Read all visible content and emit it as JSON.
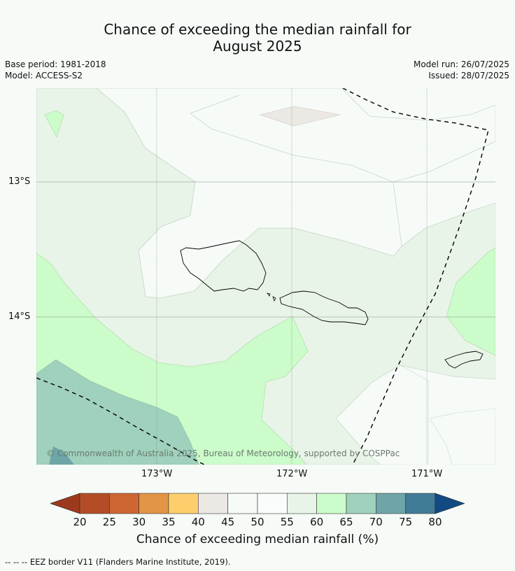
{
  "title": {
    "line1": "Chance of exceeding the median rainfall for",
    "line2": "August 2025"
  },
  "meta": {
    "base_period": "Base period: 1981-2018",
    "model": "Model: ACCESS-S2",
    "model_run": "Model run: 26/07/2025",
    "issued": "Issued: 28/07/2025"
  },
  "map": {
    "lat_labels": [
      "13°S",
      "14°S"
    ],
    "lon_labels": [
      "173°W",
      "172°W",
      "171°W"
    ],
    "copyright": "© Commonwealth of Australia 2025, Bureau of Meteorology, supported by COSPPac",
    "land_outline_color": "#000000",
    "eez_line_color": "#000000"
  },
  "colorbar": {
    "title": "Chance of exceeding median rainfall (%)",
    "ticks": [
      "20",
      "25",
      "30",
      "35",
      "40",
      "45",
      "50",
      "55",
      "60",
      "65",
      "70",
      "75",
      "80"
    ],
    "colors": [
      "#9c3a1e",
      "#b34d27",
      "#cd6633",
      "#e39446",
      "#fdcf6c",
      "#ece9e5",
      "#f7fbf8",
      "#f9fcfa",
      "#e9f4e8",
      "#ccfcca",
      "#9fd1bc",
      "#6ea5a8",
      "#427b98",
      "#124b84"
    ]
  },
  "footnote": "--  --  -- EEZ border V11 (Flanders Marine Institute, 2019)."
}
